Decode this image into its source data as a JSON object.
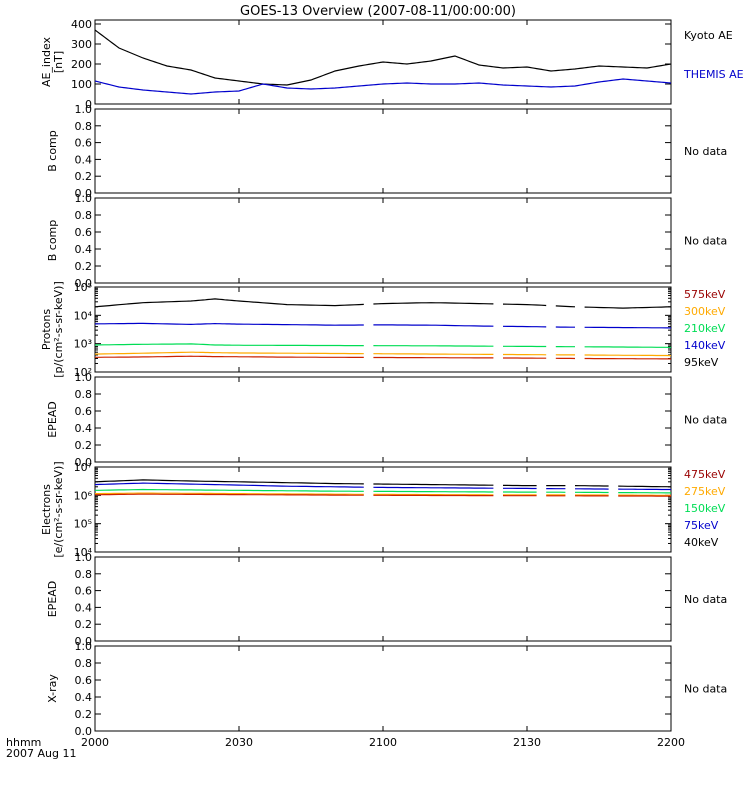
{
  "title": "GOES-13 Overview (2007-08-11/00:00:00)",
  "footer": {
    "line1": "hhmm",
    "line2": "2007 Aug 11"
  },
  "x_tick_labels": [
    "2000",
    "2030",
    "2100",
    "2130",
    "2200"
  ],
  "colors": {
    "black": "#000000",
    "blue": "#0000cc",
    "green": "#00dd55",
    "orange": "#ffaa00",
    "red": "#cc2200",
    "darkred": "#990000"
  },
  "chart_data": [
    {
      "type": "line",
      "panel": "ae",
      "ylabel": [
        "AE_index",
        "[nT]"
      ],
      "yscale": "linear",
      "ylim": [
        0,
        420
      ],
      "yticks": [
        0,
        100,
        200,
        300,
        400
      ],
      "ytick_labels": [
        "0",
        "100",
        "200",
        "300",
        "400"
      ],
      "x_minutes": [
        0,
        5,
        10,
        15,
        20,
        25,
        30,
        35,
        40,
        45,
        50,
        55,
        60,
        65,
        70,
        75,
        80,
        85,
        90,
        95,
        100,
        105,
        110,
        115,
        120
      ],
      "series": [
        {
          "name": "Kyoto AE",
          "color": "#000000",
          "values": [
            370,
            280,
            230,
            190,
            170,
            130,
            115,
            100,
            95,
            120,
            165,
            190,
            210,
            200,
            215,
            240,
            195,
            180,
            185,
            165,
            175,
            190,
            185,
            180,
            200
          ]
        },
        {
          "name": "THEMIS AE",
          "color": "#0000cc",
          "values": [
            115,
            85,
            70,
            60,
            50,
            60,
            65,
            100,
            80,
            75,
            80,
            90,
            100,
            105,
            100,
            100,
            105,
            95,
            90,
            85,
            90,
            110,
            125,
            115,
            105
          ]
        }
      ],
      "legend": [
        {
          "label": "Kyoto AE",
          "color": "#000000"
        },
        {
          "label": "THEMIS AE",
          "color": "#0000cc"
        }
      ]
    },
    {
      "type": "line",
      "panel": "bcomp1",
      "ylabel": [
        "B comp"
      ],
      "yscale": "linear",
      "ylim": [
        0,
        1
      ],
      "yticks": [
        0,
        0.2,
        0.4,
        0.6,
        0.8,
        1.0
      ],
      "ytick_labels": [
        "0.0",
        "0.2",
        "0.4",
        "0.6",
        "0.8",
        "1.0"
      ],
      "series": [],
      "nodata": "No data"
    },
    {
      "type": "line",
      "panel": "bcomp2",
      "ylabel": [
        "B comp"
      ],
      "yscale": "linear",
      "ylim": [
        0,
        1
      ],
      "yticks": [
        0,
        0.2,
        0.4,
        0.6,
        0.8,
        1.0
      ],
      "ytick_labels": [
        "0.0",
        "0.2",
        "0.4",
        "0.6",
        "0.8",
        "1.0"
      ],
      "series": [],
      "nodata": "No data"
    },
    {
      "type": "line",
      "panel": "protons",
      "ylabel": [
        "Protons",
        "[p/(cm²-s-sr-keV)]"
      ],
      "yscale": "log",
      "ylim": [
        100,
        100000
      ],
      "yticks": [
        100,
        1000,
        10000,
        100000
      ],
      "ytick_labels": [
        "10²",
        "10³",
        "10⁴",
        "10⁵"
      ],
      "x_minutes": [
        0,
        10,
        20,
        25,
        30,
        40,
        50,
        60,
        70,
        80,
        90,
        100,
        110,
        120
      ],
      "gaps": [
        [
          56,
          58
        ],
        [
          83,
          85
        ],
        [
          94,
          96
        ],
        [
          100,
          102
        ]
      ],
      "series": [
        {
          "name": "95keV",
          "color": "#000000",
          "values": [
            20000,
            28000,
            32000,
            38000,
            32000,
            24000,
            22000,
            26000,
            28000,
            26000,
            24000,
            20000,
            18000,
            20000
          ]
        },
        {
          "name": "140keV",
          "color": "#0000cc",
          "values": [
            5000,
            5200,
            4800,
            5100,
            4900,
            4700,
            4500,
            4600,
            4500,
            4200,
            4000,
            3800,
            3700,
            3600
          ]
        },
        {
          "name": "210keV",
          "color": "#00dd55",
          "values": [
            900,
            950,
            980,
            900,
            880,
            870,
            860,
            850,
            840,
            820,
            800,
            780,
            760,
            740
          ]
        },
        {
          "name": "300keV",
          "color": "#ffaa00",
          "values": [
            430,
            460,
            500,
            480,
            470,
            460,
            450,
            440,
            430,
            420,
            410,
            400,
            390,
            380
          ]
        },
        {
          "name": "575keV",
          "color": "#cc2200",
          "values": [
            330,
            340,
            360,
            350,
            345,
            335,
            330,
            325,
            320,
            315,
            310,
            300,
            295,
            290
          ]
        }
      ],
      "legend": [
        {
          "label": "575keV",
          "color": "#990000"
        },
        {
          "label": "300keV",
          "color": "#ffaa00"
        },
        {
          "label": "210keV",
          "color": "#00dd55"
        },
        {
          "label": "140keV",
          "color": "#0000cc"
        },
        {
          "label": "95keV",
          "color": "#000000"
        }
      ]
    },
    {
      "type": "line",
      "panel": "epead1",
      "ylabel": [
        "EPEAD"
      ],
      "yscale": "linear",
      "ylim": [
        0,
        1
      ],
      "yticks": [
        0,
        0.2,
        0.4,
        0.6,
        0.8,
        1.0
      ],
      "ytick_labels": [
        "0.0",
        "0.2",
        "0.4",
        "0.6",
        "0.8",
        "1.0"
      ],
      "series": [],
      "nodata": "No data"
    },
    {
      "type": "line",
      "panel": "electrons",
      "ylabel": [
        "Electrons",
        "[e/(cm²-s-sr-keV)]"
      ],
      "yscale": "log",
      "ylim": [
        10000,
        10000000
      ],
      "yticks": [
        10000,
        100000,
        1000000,
        10000000
      ],
      "ytick_labels": [
        "10⁴",
        "10⁵",
        "10⁶",
        "10⁷"
      ],
      "x_minutes": [
        0,
        10,
        20,
        30,
        40,
        50,
        60,
        70,
        80,
        90,
        100,
        110,
        120
      ],
      "gaps": [
        [
          56,
          58
        ],
        [
          83,
          85
        ],
        [
          92,
          94
        ],
        [
          98,
          100
        ],
        [
          107,
          109
        ]
      ],
      "series": [
        {
          "name": "40keV",
          "color": "#000000",
          "values": [
            3000000,
            3500000,
            3200000,
            3000000,
            2800000,
            2600000,
            2500000,
            2400000,
            2300000,
            2200000,
            2200000,
            2100000,
            2000000
          ]
        },
        {
          "name": "75keV",
          "color": "#0000cc",
          "values": [
            2400000,
            2700000,
            2500000,
            2300000,
            2100000,
            2000000,
            1900000,
            1850000,
            1800000,
            1750000,
            1700000,
            1650000,
            1600000
          ]
        },
        {
          "name": "150keV",
          "color": "#00dd55",
          "values": [
            1500000,
            1600000,
            1550000,
            1500000,
            1450000,
            1400000,
            1380000,
            1350000,
            1320000,
            1300000,
            1280000,
            1250000,
            1220000
          ]
        },
        {
          "name": "275keV",
          "color": "#ffaa00",
          "values": [
            1150000,
            1200000,
            1180000,
            1150000,
            1120000,
            1100000,
            1080000,
            1060000,
            1050000,
            1040000,
            1030000,
            1020000,
            1000000
          ]
        },
        {
          "name": "475keV",
          "color": "#cc2200",
          "values": [
            1050000,
            1100000,
            1080000,
            1060000,
            1040000,
            1020000,
            1000000,
            990000,
            980000,
            970000,
            960000,
            950000,
            940000
          ]
        }
      ],
      "legend": [
        {
          "label": "475keV",
          "color": "#990000"
        },
        {
          "label": "275keV",
          "color": "#ffaa00"
        },
        {
          "label": "150keV",
          "color": "#00dd55"
        },
        {
          "label": "75keV",
          "color": "#0000cc"
        },
        {
          "label": "40keV",
          "color": "#000000"
        }
      ]
    },
    {
      "type": "line",
      "panel": "epead2",
      "ylabel": [
        "EPEAD"
      ],
      "yscale": "linear",
      "ylim": [
        0,
        1
      ],
      "yticks": [
        0,
        0.2,
        0.4,
        0.6,
        0.8,
        1.0
      ],
      "ytick_labels": [
        "0.0",
        "0.2",
        "0.4",
        "0.6",
        "0.8",
        "1.0"
      ],
      "series": [],
      "nodata": "No data"
    },
    {
      "type": "line",
      "panel": "xray",
      "ylabel": [
        "X-ray"
      ],
      "yscale": "linear",
      "ylim": [
        0,
        1
      ],
      "yticks": [
        0,
        0.2,
        0.4,
        0.6,
        0.8,
        1.0
      ],
      "ytick_labels": [
        "0.0",
        "0.2",
        "0.4",
        "0.6",
        "0.8",
        "1.0"
      ],
      "series": [],
      "nodata": "No data"
    }
  ]
}
